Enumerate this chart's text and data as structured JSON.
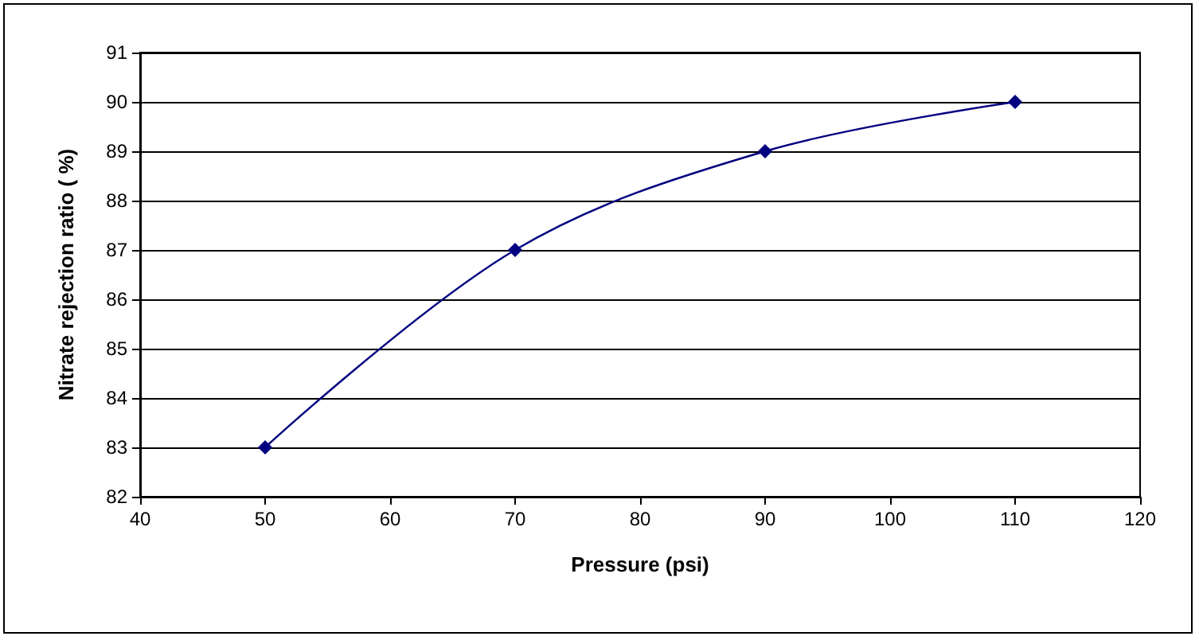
{
  "chart_data": {
    "type": "line",
    "xlabel": "Pressure (psi)",
    "ylabel": "Nitrate rejection ratio ( %)",
    "x": [
      50,
      70,
      90,
      110
    ],
    "values": [
      83,
      87,
      89,
      90
    ],
    "color": "#000080",
    "xlim": [
      40,
      120
    ],
    "xticks": [
      40,
      50,
      60,
      70,
      80,
      90,
      100,
      110,
      120
    ],
    "ylim": [
      82,
      91
    ],
    "yticks": [
      82,
      83,
      84,
      85,
      86,
      87,
      88,
      89,
      90,
      91
    ],
    "grid": "y",
    "marker": "diamond",
    "line_style": "solid"
  }
}
